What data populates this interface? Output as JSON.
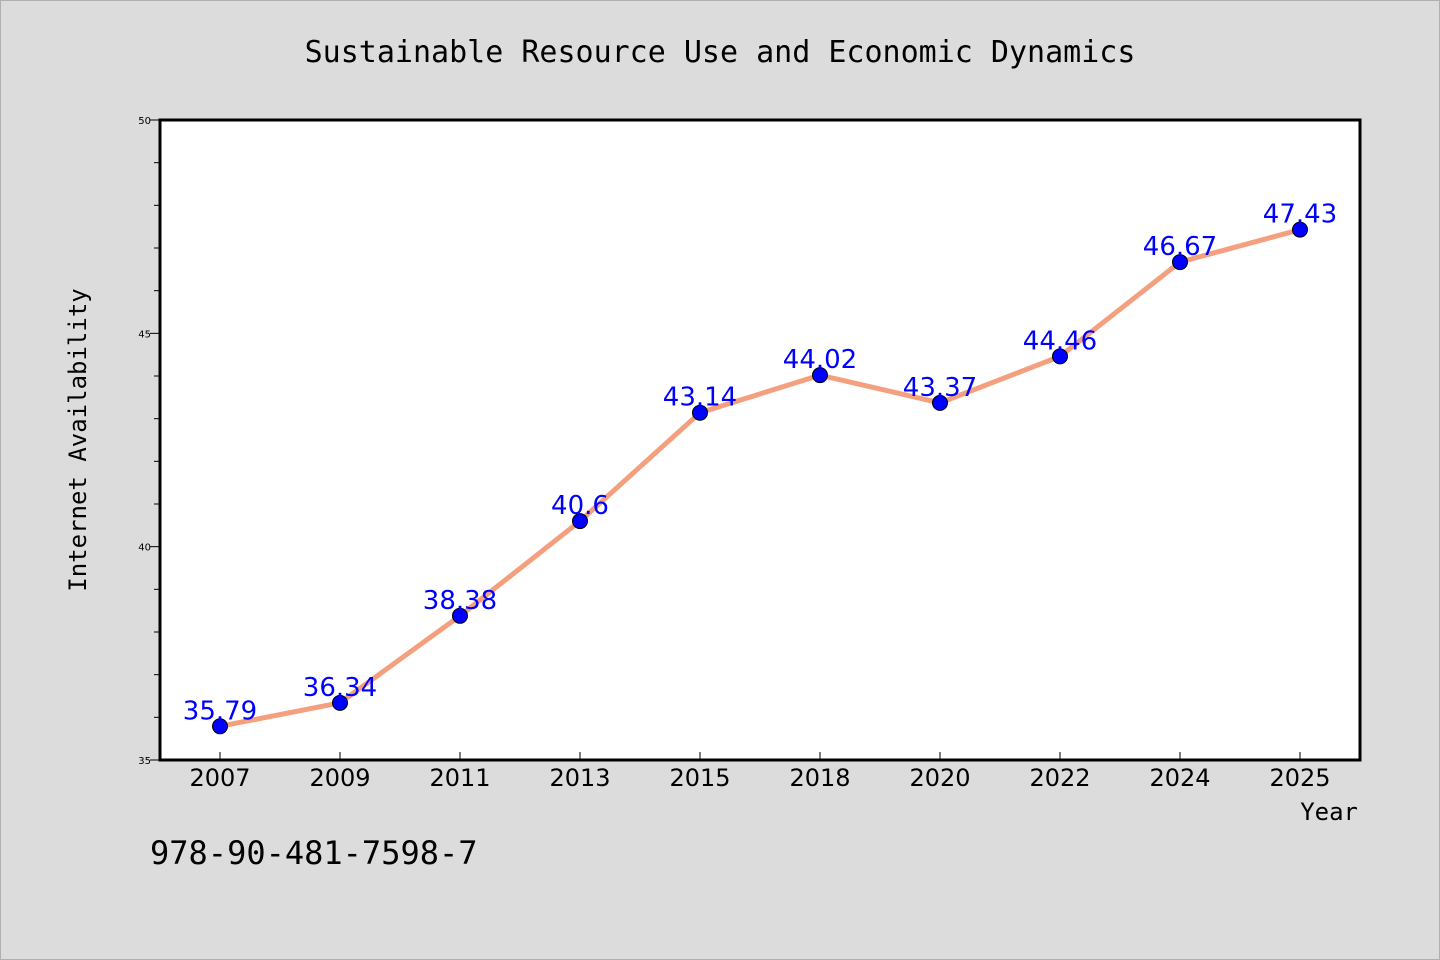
{
  "footer": {
    "isbn": "978-90-481-7598-7"
  },
  "chart_data": {
    "type": "line",
    "title": "Sustainable Resource Use and Economic Dynamics",
    "xlabel": "Year",
    "ylabel": "Internet Availability",
    "categories": [
      "2007",
      "2009",
      "2011",
      "2013",
      "2015",
      "2018",
      "2020",
      "2022",
      "2024",
      "2025"
    ],
    "series": [
      {
        "values": [
          35.79,
          36.34,
          38.38,
          40.6,
          43.14,
          44.02,
          43.37,
          44.46,
          46.67,
          47.43
        ],
        "data_labels": [
          "35.79",
          "36.34",
          "38.38",
          "40.6",
          "43.14",
          "44.02",
          "43.37",
          "44.46",
          "46.67",
          "47.43"
        ]
      }
    ],
    "ylim": [
      35,
      50
    ],
    "y_ticks": [
      "35",
      "40",
      "45",
      "50"
    ],
    "grid": false,
    "colors": {
      "line": "#f4a07e",
      "marker": "#0000ff",
      "label": "#0000ff",
      "background": "#dcdcdc",
      "plot_background": "#ffffff"
    }
  }
}
